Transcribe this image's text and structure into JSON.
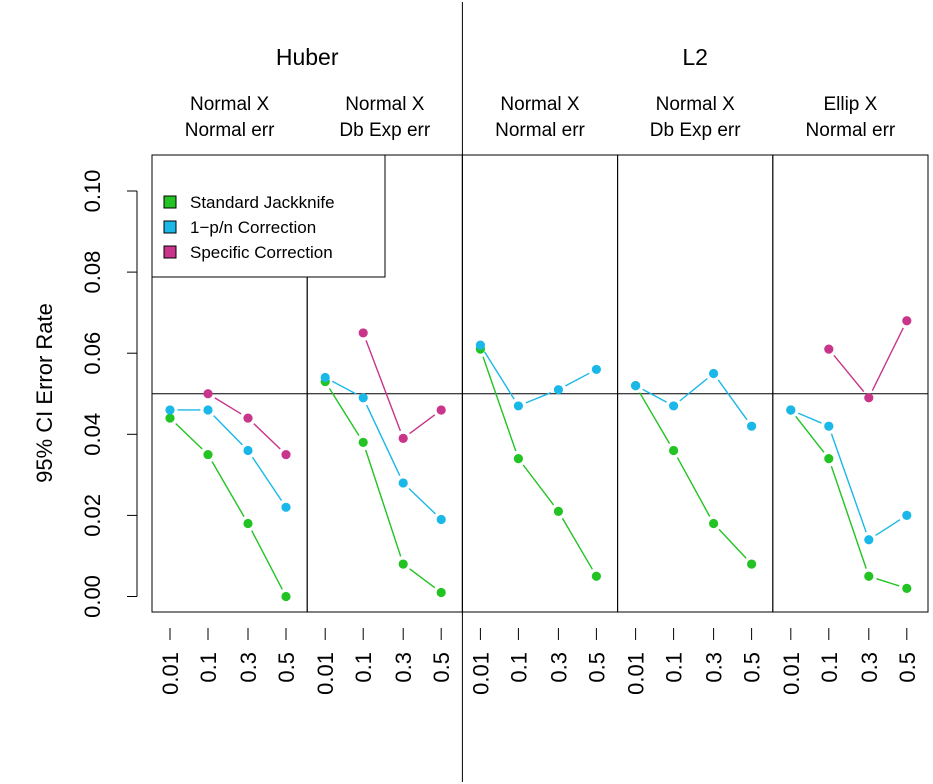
{
  "chart_data": {
    "type": "line",
    "ylabel": "95% CI Error Rate",
    "ylim": [
      0,
      0.1
    ],
    "y_ticks": [
      "0.00",
      "0.02",
      "0.04",
      "0.06",
      "0.08",
      "0.10"
    ],
    "reference_line": 0.05,
    "categories": [
      "0.01",
      "0.1",
      "0.3",
      "0.5"
    ],
    "groups": [
      {
        "label": "Huber",
        "panels": [
          0,
          1
        ]
      },
      {
        "label": "L2",
        "panels": [
          2,
          3,
          4
        ]
      }
    ],
    "legend": {
      "placement": "top-left",
      "entries": [
        "Standard Jackknife",
        "1−p/n Correction",
        "Specific Correction"
      ]
    },
    "colors": {
      "standard": "#22c322",
      "correction": "#1ab8e8",
      "specific": "#c8358a"
    },
    "panels": [
      {
        "title1": "Normal X",
        "title2": "Normal err",
        "series": [
          {
            "key": "standard",
            "values": [
              0.044,
              0.035,
              0.018,
              0.0
            ]
          },
          {
            "key": "correction",
            "values": [
              0.046,
              0.046,
              0.036,
              0.022
            ]
          },
          {
            "key": "specific",
            "values": [
              null,
              0.05,
              0.044,
              0.035
            ]
          }
        ]
      },
      {
        "title1": "Normal X",
        "title2": "Db Exp err",
        "series": [
          {
            "key": "standard",
            "values": [
              0.053,
              0.038,
              0.008,
              0.001
            ]
          },
          {
            "key": "correction",
            "values": [
              0.054,
              0.049,
              0.028,
              0.019
            ]
          },
          {
            "key": "specific",
            "values": [
              null,
              0.065,
              0.039,
              0.046
            ]
          }
        ]
      },
      {
        "title1": "Normal X",
        "title2": "Normal err",
        "series": [
          {
            "key": "standard",
            "values": [
              0.061,
              0.034,
              0.021,
              0.005
            ]
          },
          {
            "key": "correction",
            "values": [
              0.062,
              0.047,
              0.051,
              0.056
            ]
          }
        ]
      },
      {
        "title1": "Normal X",
        "title2": "Db Exp err",
        "series": [
          {
            "key": "standard",
            "values": [
              0.052,
              0.036,
              0.018,
              0.008
            ]
          },
          {
            "key": "correction",
            "values": [
              0.052,
              0.047,
              0.055,
              0.042
            ]
          }
        ]
      },
      {
        "title1": "Ellip X",
        "title2": "Normal err",
        "series": [
          {
            "key": "standard",
            "values": [
              0.046,
              0.034,
              0.005,
              0.002
            ]
          },
          {
            "key": "correction",
            "values": [
              0.046,
              0.042,
              0.014,
              0.02
            ]
          },
          {
            "key": "specific",
            "values": [
              null,
              0.061,
              0.049,
              0.068
            ]
          }
        ]
      }
    ]
  }
}
